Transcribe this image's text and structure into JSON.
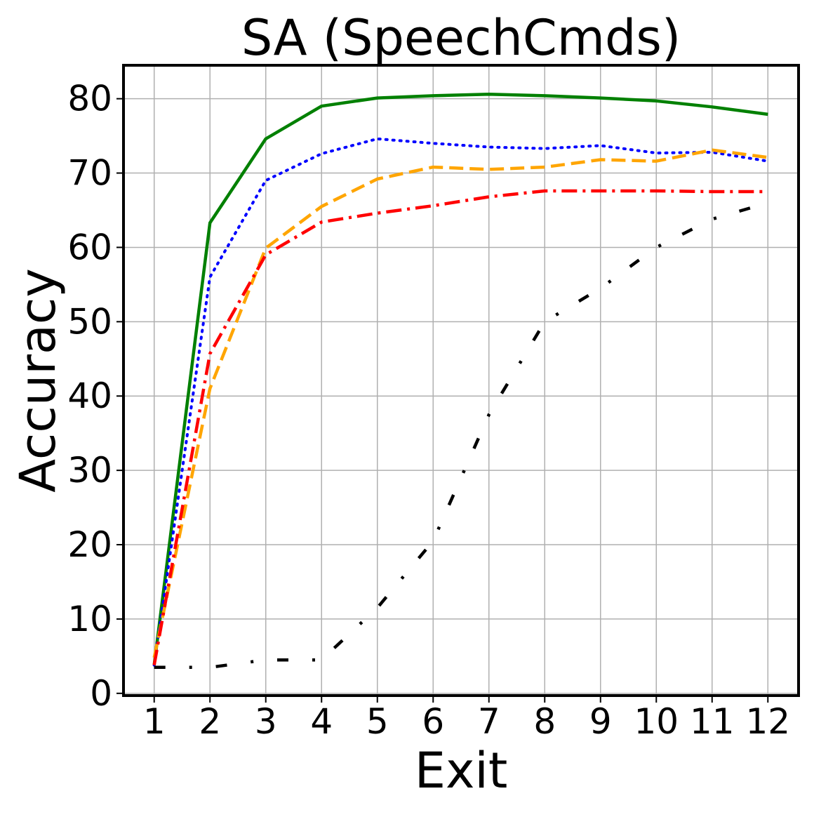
{
  "chart_data": {
    "type": "line",
    "title": "SA (SpeechCmds)",
    "xlabel": "Exit",
    "ylabel": "Accuracy",
    "x": [
      1,
      2,
      3,
      4,
      5,
      6,
      7,
      8,
      9,
      10,
      11,
      12
    ],
    "xlim": [
      0.45,
      12.55
    ],
    "ylim": [
      -0.3,
      84.5
    ],
    "yticks": [
      0,
      10,
      20,
      30,
      40,
      50,
      60,
      70,
      80
    ],
    "grid": true,
    "legend": "none",
    "series": [
      {
        "values": [
          3.8,
          63.3,
          74.6,
          79.0,
          80.1,
          80.4,
          80.6,
          80.4,
          80.1,
          79.7,
          78.9,
          77.9
        ],
        "color": "#008000",
        "style": "solid"
      },
      {
        "values": [
          3.8,
          56.0,
          69.0,
          72.6,
          74.6,
          74.0,
          73.5,
          73.3,
          73.7,
          72.7,
          72.8,
          71.6
        ],
        "color": "#0000ff",
        "style": "dotted"
      },
      {
        "values": [
          4.8,
          41.0,
          59.9,
          65.5,
          69.2,
          70.8,
          70.5,
          70.8,
          71.8,
          71.6,
          73.1,
          72.1
        ],
        "color": "#ffa500",
        "style": "dashed"
      },
      {
        "values": [
          3.8,
          45.7,
          59.0,
          63.4,
          64.6,
          65.6,
          66.8,
          67.6,
          67.6,
          67.6,
          67.5,
          67.5
        ],
        "color": "#ff0000",
        "style": "dashdot"
      },
      {
        "values": [
          3.5,
          3.5,
          4.5,
          4.5,
          11.5,
          20.5,
          37.5,
          50.0,
          54.5,
          60.0,
          63.8,
          66.0
        ],
        "color": "#000000",
        "style": "loosely-dashdotted"
      }
    ]
  }
}
